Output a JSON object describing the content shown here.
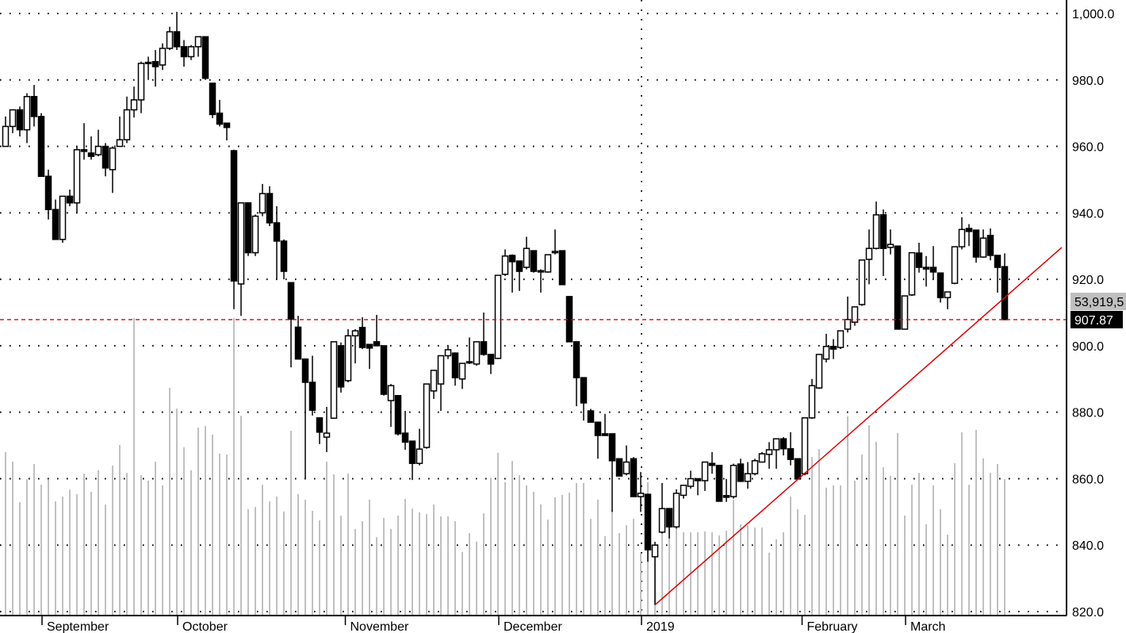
{
  "chart_data": {
    "type": "candlestick",
    "title": "",
    "xlabel": "",
    "ylabel": "",
    "ylim": [
      820,
      1000
    ],
    "y_ticks": [
      820,
      840,
      860,
      880,
      900,
      920,
      940,
      960,
      980,
      1000
    ],
    "y_tick_labels": [
      "820.0",
      "840.0",
      "860.0",
      "880.0",
      "900.0",
      "920.0",
      "940.0",
      "960.0",
      "980.0",
      "1,000.0"
    ],
    "grid": "dotted",
    "month_labels": [
      {
        "label": "September",
        "at_bar": 6
      },
      {
        "label": "October",
        "at_bar": 25
      },
      {
        "label": "November",
        "at_bar": 48.5
      },
      {
        "label": "December",
        "at_bar": 70
      },
      {
        "label": "2019",
        "at_bar": 90
      },
      {
        "label": "February",
        "at_bar": 112.5
      },
      {
        "label": "March",
        "at_bar": 127
      }
    ],
    "year_separator_bar": 90,
    "ohlc_columns": [
      "open",
      "high",
      "low",
      "close"
    ],
    "ohlc": [
      [
        960,
        969,
        960,
        966
      ],
      [
        966,
        971,
        964,
        971
      ],
      [
        971,
        972,
        963,
        965
      ],
      [
        965,
        976,
        961,
        975
      ],
      [
        975,
        978.5,
        966,
        969
      ],
      [
        969,
        970,
        951,
        951
      ],
      [
        951,
        953,
        938,
        941
      ],
      [
        941,
        944,
        932,
        932
      ],
      [
        932,
        945,
        931,
        945
      ],
      [
        945,
        947,
        942,
        943
      ],
      [
        943,
        960,
        940,
        959
      ],
      [
        959,
        967,
        956,
        958.5
      ],
      [
        958,
        963,
        956,
        957
      ],
      [
        957.5,
        965,
        957,
        960
      ],
      [
        960,
        961,
        951,
        953.5
      ],
      [
        953,
        960,
        946,
        959.5
      ],
      [
        960,
        969,
        960,
        962
      ],
      [
        962,
        975,
        961,
        971
      ],
      [
        971,
        978,
        968.7,
        974
      ],
      [
        974,
        985.5,
        970,
        985
      ],
      [
        985,
        987,
        980,
        985.3
      ],
      [
        985.5,
        989,
        978,
        984
      ],
      [
        984.5,
        991,
        983,
        989.5
      ],
      [
        989.5,
        996,
        989,
        994.5
      ],
      [
        994.5,
        1000.5,
        989,
        990
      ],
      [
        990,
        992,
        984,
        987
      ],
      [
        987,
        990.5,
        986,
        990
      ],
      [
        990,
        993,
        987,
        993
      ],
      [
        993,
        993,
        980,
        980.5
      ],
      [
        979,
        979,
        968.5,
        969.6
      ],
      [
        970,
        974,
        966,
        966.7
      ],
      [
        967,
        967,
        961.8,
        965.7
      ],
      [
        958.7,
        959,
        911,
        919.5
      ],
      [
        918.6,
        943,
        909,
        943
      ],
      [
        943,
        943,
        927,
        928
      ],
      [
        928,
        939.5,
        927,
        939
      ],
      [
        940,
        948.7,
        939,
        945.8
      ],
      [
        945.8,
        948,
        936,
        937
      ],
      [
        937,
        942,
        920,
        931.5
      ],
      [
        931.5,
        932,
        920,
        922.4
      ],
      [
        919,
        919,
        893.5,
        908
      ],
      [
        905.6,
        909,
        897,
        896
      ],
      [
        896,
        896,
        860,
        889
      ],
      [
        889,
        897,
        879,
        880.6
      ],
      [
        878.3,
        878.5,
        870.4,
        874
      ],
      [
        872.5,
        881.6,
        868,
        873.7
      ],
      [
        878.2,
        901.2,
        878,
        901.2
      ],
      [
        900,
        901,
        885.9,
        887.6
      ],
      [
        889.5,
        905,
        889,
        903
      ],
      [
        903,
        905,
        894.7,
        904.5
      ],
      [
        905.5,
        908.6,
        899,
        899.5
      ],
      [
        900.4,
        900.5,
        893,
        899.3
      ],
      [
        901.2,
        909.3,
        900,
        900
      ],
      [
        900,
        900,
        885,
        885.4
      ],
      [
        883.5,
        888.5,
        875.6,
        888
      ],
      [
        885,
        885,
        873,
        873.5
      ],
      [
        873.7,
        880.4,
        868.7,
        871
      ],
      [
        871.3,
        871.3,
        859.6,
        864.6
      ],
      [
        864.6,
        875,
        864,
        868.9
      ],
      [
        869.4,
        888.5,
        869,
        888.5
      ],
      [
        886.4,
        892.6,
        884,
        892.6
      ],
      [
        888.5,
        897,
        880.4,
        897
      ],
      [
        897,
        900,
        896,
        898.8
      ],
      [
        897.8,
        898,
        888,
        890.4
      ],
      [
        890,
        894.7,
        887,
        894.7
      ],
      [
        895.2,
        902.5,
        894.5,
        895.2
      ],
      [
        894.5,
        901.2,
        894,
        901.2
      ],
      [
        901.2,
        910,
        897,
        897.4
      ],
      [
        897.4,
        897.4,
        891.5,
        894.5
      ],
      [
        896.2,
        921.2,
        896,
        921.2
      ],
      [
        921.5,
        929,
        921,
        927
      ],
      [
        927.2,
        927.5,
        916,
        925.3
      ],
      [
        925.5,
        925.5,
        916.5,
        922.4
      ],
      [
        923.6,
        932.8,
        923,
        929.3
      ],
      [
        928.6,
        928.6,
        922,
        922.4
      ],
      [
        922.6,
        923,
        916,
        922.2
      ],
      [
        922.2,
        927.4,
        922,
        927.4
      ],
      [
        928,
        935,
        927.5,
        928.4
      ],
      [
        928.6,
        928.6,
        918.4,
        918.4
      ],
      [
        914.8,
        915,
        901.2,
        901.2
      ],
      [
        901.2,
        901.2,
        881.8,
        890.4
      ],
      [
        890.4,
        890.4,
        877.5,
        882.8
      ],
      [
        880.4,
        881,
        877,
        877
      ],
      [
        877,
        877,
        866,
        873
      ],
      [
        873.5,
        879.5,
        873,
        873
      ],
      [
        873.5,
        873.5,
        850,
        865.4
      ],
      [
        866,
        866,
        860.8,
        860.8
      ],
      [
        861.5,
        870,
        861,
        865
      ],
      [
        866,
        866.5,
        854.6,
        854.6
      ],
      [
        854.6,
        862,
        850,
        855.6
      ],
      [
        855.3,
        855.3,
        835,
        838.6
      ],
      [
        836.5,
        841,
        822,
        840
      ],
      [
        843.9,
        858.7,
        843.5,
        851
      ],
      [
        851,
        851,
        842,
        845.5
      ],
      [
        845.5,
        856.8,
        845,
        855.6
      ],
      [
        855,
        858,
        854,
        858
      ],
      [
        857.7,
        862.4,
        857,
        860
      ],
      [
        860,
        860,
        855,
        859.4
      ],
      [
        859.4,
        865,
        856.3,
        865
      ],
      [
        864.6,
        868,
        861.5,
        864
      ],
      [
        864,
        864,
        853.2,
        853.2
      ],
      [
        854.9,
        859.9,
        853,
        854.4
      ],
      [
        854.6,
        864.5,
        854,
        864
      ],
      [
        864.4,
        866,
        859,
        859.2
      ],
      [
        859.2,
        865,
        857,
        861.5
      ],
      [
        861.5,
        866,
        861,
        865.4
      ],
      [
        865,
        868,
        865,
        867.5
      ],
      [
        867.3,
        871,
        863,
        868.7
      ],
      [
        868.7,
        872,
        863,
        872
      ],
      [
        872,
        872.5,
        867,
        869
      ],
      [
        869,
        874,
        864,
        865.8
      ],
      [
        866,
        866,
        859.9,
        859.9
      ],
      [
        861.5,
        878.3,
        861,
        878.3
      ],
      [
        878.3,
        890,
        878,
        888
      ],
      [
        887.3,
        897.4,
        887,
        897.4
      ],
      [
        896,
        903.6,
        895,
        899.8
      ],
      [
        899.8,
        902,
        896,
        899
      ],
      [
        899.5,
        904.5,
        899,
        904.5
      ],
      [
        905,
        914.8,
        904,
        907.9
      ],
      [
        907.1,
        911.7,
        906,
        911.7
      ],
      [
        912.4,
        925.8,
        912,
        925.8
      ],
      [
        926,
        935,
        918.5,
        929.3
      ],
      [
        929.3,
        943.4,
        929,
        939.4
      ],
      [
        939.4,
        941,
        921,
        929.3
      ],
      [
        929.6,
        935,
        927.5,
        930.5
      ],
      [
        930,
        930,
        905,
        905
      ],
      [
        905,
        915,
        905,
        915
      ],
      [
        915.3,
        928,
        915,
        928
      ],
      [
        927.9,
        931,
        922,
        923.6
      ],
      [
        923.6,
        927,
        917.8,
        923.1
      ],
      [
        923.6,
        930,
        920,
        922.2
      ],
      [
        921.9,
        921.9,
        913,
        914.5
      ],
      [
        914.5,
        916.2,
        911,
        916.2
      ],
      [
        918.8,
        929.8,
        918.5,
        929.8
      ],
      [
        929.8,
        938.7,
        929,
        935
      ],
      [
        935.3,
        936.6,
        930,
        934.4
      ],
      [
        934.8,
        934.8,
        925,
        926.7
      ],
      [
        926.7,
        935,
        926.5,
        932.4
      ],
      [
        933.2,
        935.3,
        925.7,
        927.2
      ],
      [
        927.2,
        927.2,
        916,
        923.6
      ],
      [
        923.8,
        927.8,
        907.87,
        907.87
      ]
    ],
    "volume_unit": "millions",
    "volume": [
      64.6,
      60.8,
      44.8,
      53.9,
      59.9,
      51.7,
      53.6,
      45.1,
      47.0,
      49.8,
      48.0,
      56.1,
      48.9,
      57.4,
      43.9,
      59.3,
      67.4,
      56.4,
      117.6,
      55.5,
      53.3,
      60.8,
      51.4,
      90.0,
      81.8,
      66.5,
      57.4,
      74.3,
      74.9,
      71.5,
      64.0,
      63.6,
      117.6,
      79.0,
      42.0,
      42.9,
      51.7,
      45.1,
      47.0,
      41.1,
      73.0,
      48.0,
      45.8,
      41.4,
      37.6,
      60.8,
      55.8,
      39.5,
      56.1,
      34.2,
      37.3,
      45.8,
      31.0,
      38.6,
      34.2,
      39.5,
      46.1,
      42.3,
      40.8,
      40.1,
      43.9,
      39.2,
      39.2,
      37.3,
      25.1,
      32.6,
      29.2,
      40.4,
      54.5,
      64.3,
      52.7,
      61.1,
      55.5,
      51.4,
      48.9,
      43.9,
      37.9,
      46.7,
      47.7,
      48.6,
      52.4,
      52.4,
      38.2,
      45.8,
      31.4,
      41.7,
      32.6,
      35.7,
      38.2,
      24.5,
      52.7,
      24.5,
      33.5,
      34.8,
      34.8,
      32.9,
      32.9,
      32.9,
      33.2,
      32.9,
      31.7,
      33.5,
      45.8,
      36.1,
      35.7,
      34.8,
      34.8,
      24.8,
      30.1,
      32.9,
      47.0,
      42.0,
      39.8,
      62.7,
      65.8,
      50.5,
      51.4,
      51.4,
      78.7,
      53.3,
      63.6,
      75.2,
      68.7,
      58.6,
      55.2,
      72.1,
      39.5,
      51.7,
      56.4,
      36.1,
      51.4,
      42.0,
      32.0,
      60.2,
      72.4,
      51.7,
      73.4,
      62.1,
      56.4,
      59.9,
      53.9
    ],
    "last_price": 907.87,
    "last_price_label": "907.87",
    "last_volume_label": "53,919,5",
    "last_price_line": {
      "value": 907.87,
      "style": "dashed",
      "color": "#e00000"
    },
    "trendline": {
      "start_bar": 92,
      "start_value": 822,
      "end_bar": 149,
      "end_value": 929.6,
      "color": "#e00000"
    },
    "colors": {
      "up_fill": "#ffffff",
      "down_fill": "#000000",
      "candle_outline": "#000000",
      "volume": "#c0c0c0",
      "price_label_bg": "#000000",
      "volume_label_bg": "#c0c0c0"
    }
  }
}
